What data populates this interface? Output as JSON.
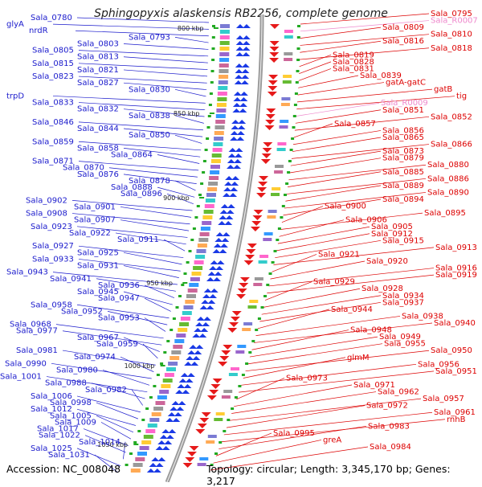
{
  "title": "Sphingopyxis alaskensis RB2256, complete genome",
  "footer": {
    "accession": "Accession: NC_008048",
    "topology": "Topology: circular; Length: 3,345,170 bp; Genes: 3,217"
  },
  "colors": {
    "left_label": "#1a1acc",
    "right_label": "#dd0000",
    "rna_label": "#ee88cc",
    "backbone": "#9a9a9a",
    "forward_arrow": "#1a3ae6",
    "reverse_arrow": "#e61a1a",
    "tick": "#22aa22"
  },
  "scale_labels": [
    "800 kbp",
    "850 kbp",
    "900 kbp",
    "950 kbp",
    "1000 kbp",
    "1050 kbp"
  ],
  "left_labels": [
    "Sala_0780",
    "glyA",
    "nrdR",
    "Sala_0793",
    "Sala_0803",
    "Sala_0805",
    "Sala_0813",
    "Sala_0815",
    "Sala_0821",
    "Sala_0823",
    "Sala_0827",
    "Sala_0830",
    "trpD",
    "Sala_0833",
    "Sala_0832",
    "Sala_0838",
    "Sala_0846",
    "Sala_0844",
    "Sala_0850",
    "Sala_0859",
    "Sala_0858",
    "Sala_0864",
    "Sala_0871",
    "Sala_0870",
    "Sala_0876",
    "Sala_0878",
    "Sala_0888",
    "Sala_0896",
    "Sala_0902",
    "Sala_0901",
    "Sala_0908",
    "Sala_0907",
    "Sala_0923",
    "Sala_0922",
    "Sala_0911",
    "Sala_0927",
    "Sala_0925",
    "Sala_0933",
    "Sala_0931",
    "Sala_0943",
    "Sala_0941",
    "Sala_0936",
    "Sala_0945",
    "Sala_0947",
    "Sala_0958",
    "Sala_0952",
    "Sala_0953",
    "Sala_0968",
    "Sala_0977",
    "Sala_0967",
    "Sala_0959",
    "Sala_0981",
    "Sala_0974",
    "Sala_0990",
    "Sala_0980",
    "Sala_1001",
    "Sala_0988",
    "Sala_0982",
    "Sala_1006",
    "Sala_0998",
    "Sala_1012",
    "Sala_1005",
    "Sala_1009",
    "Sala_1017",
    "Sala_1022",
    "Sala_1014",
    "Sala_1025",
    "Sala_1031"
  ],
  "right_labels": [
    "Sala_0795",
    "Sala_R0007",
    "Sala_0809",
    "Sala_0810",
    "Sala_0816",
    "Sala_0818",
    "Sala_0819",
    "Sala_0828",
    "Sala_0831",
    "Sala_0839",
    "gatA-gatC",
    "gatB",
    "tig",
    "Sala_R0009",
    "Sala_0851",
    "Sala_0852",
    "Sala_0857",
    "Sala_0856",
    "Sala_0865",
    "Sala_0866",
    "Sala_0873",
    "Sala_0879",
    "Sala_0880",
    "Sala_0885",
    "Sala_0886",
    "Sala_0889",
    "Sala_0890",
    "Sala_0894",
    "Sala_0900",
    "Sala_0895",
    "Sala_0906",
    "Sala_0905",
    "Sala_0912",
    "Sala_0915",
    "Sala_0913",
    "Sala_0921",
    "Sala_0920",
    "Sala_0916",
    "Sala_0919",
    "Sala_0929",
    "Sala_0928",
    "Sala_0934",
    "Sala_0937",
    "Sala_0944",
    "Sala_0938",
    "Sala_0940",
    "Sala_0948",
    "Sala_0949",
    "Sala_0955",
    "Sala_0950",
    "glmM",
    "Sala_0956",
    "Sala_0951",
    "Sala_0973",
    "Sala_0971",
    "Sala_0962",
    "Sala_0957",
    "Sala_0972",
    "Sala_0961",
    "rnhB",
    "Sala_0983",
    "Sala_0995",
    "greA",
    "Sala_0984"
  ]
}
